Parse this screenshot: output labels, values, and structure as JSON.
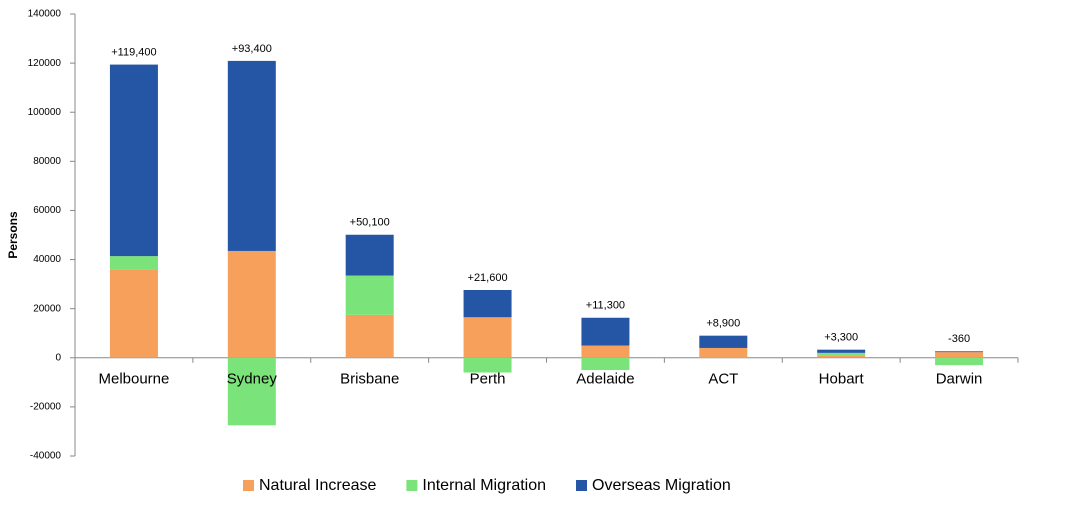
{
  "chart_data": {
    "type": "stacked_bar",
    "y_label": "Persons",
    "categories": [
      "Melbourne",
      "Sydney",
      "Brisbane",
      "Perth",
      "Adelaide",
      "ACT",
      "Hobart",
      "Darwin"
    ],
    "series": [
      {
        "name": "Natural Increase",
        "color": "#f6a05c",
        "values": [
          36000,
          43500,
          17500,
          16500,
          5000,
          4000,
          1000,
          2300
        ]
      },
      {
        "name": "Internal Migration",
        "color": "#7ae37a",
        "values": [
          5400,
          -27500,
          16000,
          -6000,
          -5000,
          -100,
          1000,
          -3000
        ]
      },
      {
        "name": "Overseas Migration",
        "color": "#2556a5",
        "values": [
          78000,
          77400,
          16600,
          11100,
          11300,
          5000,
          1300,
          340
        ]
      }
    ],
    "total_labels": [
      "+119,400",
      "+93,400",
      "+50,100",
      "+21,600",
      "+11,300",
      "+8,900",
      "+3,300",
      "-360"
    ],
    "ylim": [
      -40000,
      140000
    ],
    "yticks": [
      -40000,
      -20000,
      0,
      20000,
      40000,
      60000,
      80000,
      100000,
      120000,
      140000
    ],
    "legend": "bottom"
  }
}
